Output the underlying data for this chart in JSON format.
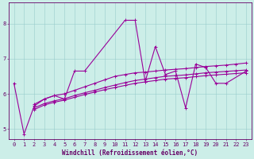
{
  "xlabel": "Windchill (Refroidissement éolien,°C)",
  "bg_color": "#cceee8",
  "line_color": "#990099",
  "grid_color": "#99cccc",
  "axis_color": "#660066",
  "xlim": [
    -0.5,
    23.5
  ],
  "ylim": [
    4.7,
    8.6
  ],
  "yticks": [
    5,
    6,
    7,
    8
  ],
  "xticks": [
    0,
    1,
    2,
    3,
    4,
    5,
    6,
    7,
    8,
    9,
    10,
    11,
    12,
    13,
    14,
    15,
    16,
    17,
    18,
    19,
    20,
    21,
    22,
    23
  ],
  "lines": [
    {
      "x": [
        0,
        1,
        2,
        3,
        4,
        5,
        6,
        7,
        11,
        12,
        13,
        14,
        15,
        16,
        17,
        18,
        19,
        20,
        21,
        23
      ],
      "y": [
        6.3,
        4.85,
        5.65,
        5.85,
        5.95,
        5.85,
        6.65,
        6.65,
        8.1,
        8.1,
        6.35,
        7.35,
        6.55,
        6.65,
        5.6,
        6.85,
        6.75,
        6.3,
        6.3,
        6.65
      ]
    },
    {
      "x": [
        2,
        3,
        4,
        5,
        6,
        7,
        8,
        9,
        10,
        11,
        12,
        13,
        14,
        15,
        16,
        17,
        18,
        19,
        20,
        21,
        22,
        23
      ],
      "y": [
        5.7,
        5.85,
        5.95,
        6.0,
        6.1,
        6.2,
        6.3,
        6.4,
        6.5,
        6.55,
        6.6,
        6.62,
        6.65,
        6.68,
        6.7,
        6.72,
        6.75,
        6.78,
        6.8,
        6.82,
        6.85,
        6.88
      ]
    },
    {
      "x": [
        2,
        3,
        4,
        5,
        6,
        7,
        8,
        9,
        10,
        11,
        12,
        13,
        14,
        15,
        16,
        17,
        18,
        19,
        20,
        21,
        22,
        23
      ],
      "y": [
        5.6,
        5.72,
        5.8,
        5.86,
        5.95,
        6.03,
        6.1,
        6.18,
        6.25,
        6.32,
        6.38,
        6.42,
        6.46,
        6.5,
        6.52,
        6.54,
        6.57,
        6.6,
        6.62,
        6.64,
        6.66,
        6.68
      ]
    },
    {
      "x": [
        2,
        3,
        4,
        5,
        6,
        7,
        8,
        9,
        10,
        11,
        12,
        13,
        14,
        15,
        16,
        17,
        18,
        19,
        20,
        21,
        22,
        23
      ],
      "y": [
        5.55,
        5.68,
        5.76,
        5.82,
        5.9,
        5.98,
        6.05,
        6.12,
        6.18,
        6.24,
        6.3,
        6.34,
        6.38,
        6.42,
        6.44,
        6.46,
        6.49,
        6.52,
        6.54,
        6.56,
        6.58,
        6.6
      ]
    }
  ],
  "marker": "+",
  "marker_size": 3,
  "linewidth": 0.8,
  "tick_fontsize": 5.0,
  "label_fontsize": 5.5,
  "figsize": [
    3.2,
    2.0
  ],
  "dpi": 100
}
